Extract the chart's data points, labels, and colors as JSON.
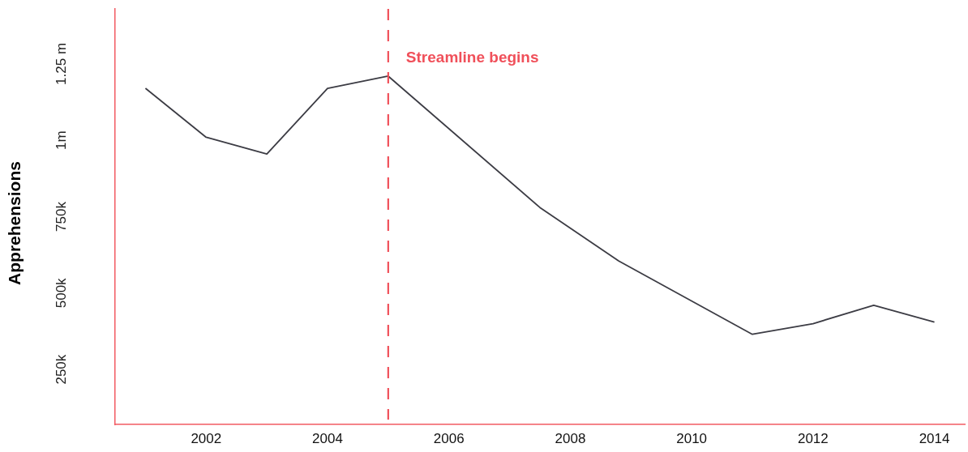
{
  "chart_data": {
    "type": "line",
    "ylabel": "Apprehensions",
    "x": [
      2001,
      2002,
      2003,
      2004,
      2005,
      2007.5,
      2008.8,
      2011,
      2012,
      2013,
      2014
    ],
    "series": [
      {
        "color": "#3c3c44",
        "values": [
          1170000,
          1010000,
          955000,
          1170000,
          1210000,
          780000,
          605000,
          365000,
          400000,
          460000,
          405000
        ]
      }
    ],
    "xlim": [
      2000.5,
      2014.5
    ],
    "xticks": [
      2002,
      2004,
      2006,
      2008,
      2010,
      2012,
      2014
    ],
    "ylim": [
      70000,
      1430000
    ],
    "yticks": [
      {
        "value": 250000,
        "label": "250k"
      },
      {
        "value": 500000,
        "label": "500k"
      },
      {
        "value": 750000,
        "label": "750k"
      },
      {
        "value": 1000000,
        "label": "1m"
      },
      {
        "value": 1250000,
        "label": "1.25 m"
      }
    ],
    "ref_lines": [
      {
        "axis": "x",
        "value": 2005,
        "label": "Streamline begins",
        "color": "#f0505a",
        "line_style": "dashed"
      }
    ],
    "grid": false,
    "legend": false,
    "marker": "none",
    "line_style": "solid"
  }
}
